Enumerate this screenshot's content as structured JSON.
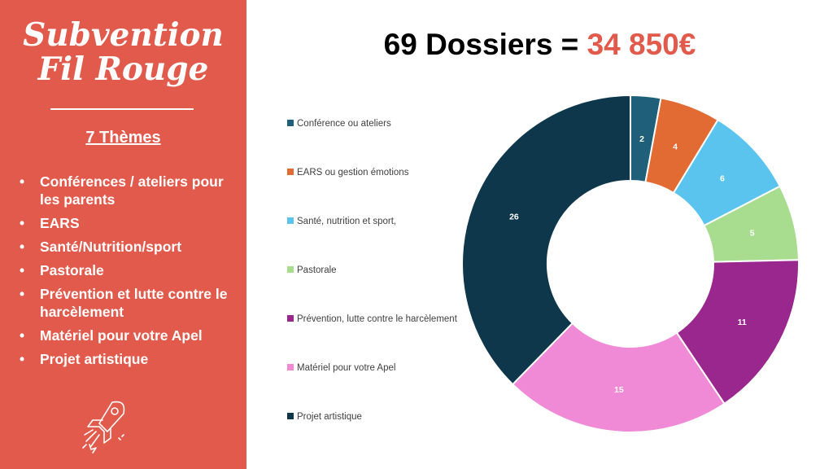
{
  "sidebar": {
    "title_line1": "Subvention",
    "title_line2": "Fil Rouge",
    "themes_heading": "7 Thèmes",
    "bullet": "•",
    "themes": [
      "Conférences / ateliers pour les parents",
      "EARS",
      "Santé/Nutrition/sport",
      "Pastorale",
      "Prévention et lutte contre le harcèlement",
      "Matériel pour votre Apel",
      "Projet artistique"
    ],
    "decoration_icon": "rocket-icon",
    "background_color": "#E15A4B"
  },
  "header": {
    "title_prefix": "69 Dossiers =",
    "title_amount": "34 850€",
    "amount_color": "#E15A4B"
  },
  "chart_data": {
    "type": "pie",
    "variant": "donut",
    "legend_position": "left",
    "series": [
      {
        "name": "Conférence ou ateliers",
        "value": 2,
        "color": "#1F5F7A"
      },
      {
        "name": "EARS ou gestion émotions",
        "value": 4,
        "color": "#E26A33"
      },
      {
        "name": "Santé, nutrition et sport,",
        "value": 6,
        "color": "#5BC4EE"
      },
      {
        "name": "Pastorale",
        "value": 5,
        "color": "#A8DC8E"
      },
      {
        "name": "Prévention, lutte contre le harcèlement",
        "value": 11,
        "color": "#99278D"
      },
      {
        "name": "Matériel pour votre Apel",
        "value": 15,
        "color": "#F08AD6"
      },
      {
        "name": "Projet artistique",
        "value": 26,
        "color": "#0E374C"
      }
    ]
  }
}
